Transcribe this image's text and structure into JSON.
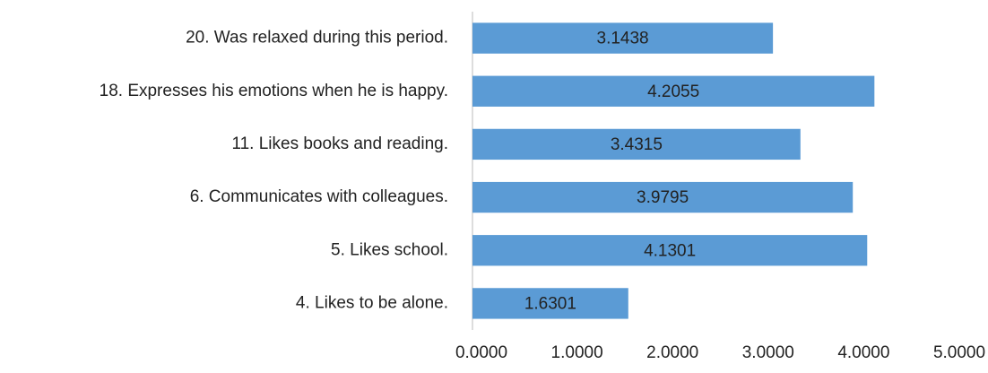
{
  "chart_data": {
    "type": "bar",
    "orientation": "horizontal",
    "categories": [
      "20. Was relaxed during this period.",
      "18. Expresses his emotions when he is happy.",
      "11. Likes books and reading.",
      "6. Communicates with colleagues.",
      "5. Likes school.",
      "4. Likes to be alone."
    ],
    "values": [
      3.1438,
      4.2055,
      3.4315,
      3.9795,
      4.1301,
      1.6301
    ],
    "color": "#5b9bd5",
    "xlim": [
      0,
      5
    ],
    "xticks": [
      {
        "value": 0,
        "label": "0.0000"
      },
      {
        "value": 1,
        "label": "1.0000"
      },
      {
        "value": 2,
        "label": "2.0000"
      },
      {
        "value": 3,
        "label": "3.0000"
      },
      {
        "value": 4,
        "label": "4.0000"
      },
      {
        "value": 5,
        "label": "5.0000"
      }
    ],
    "grid": false
  }
}
